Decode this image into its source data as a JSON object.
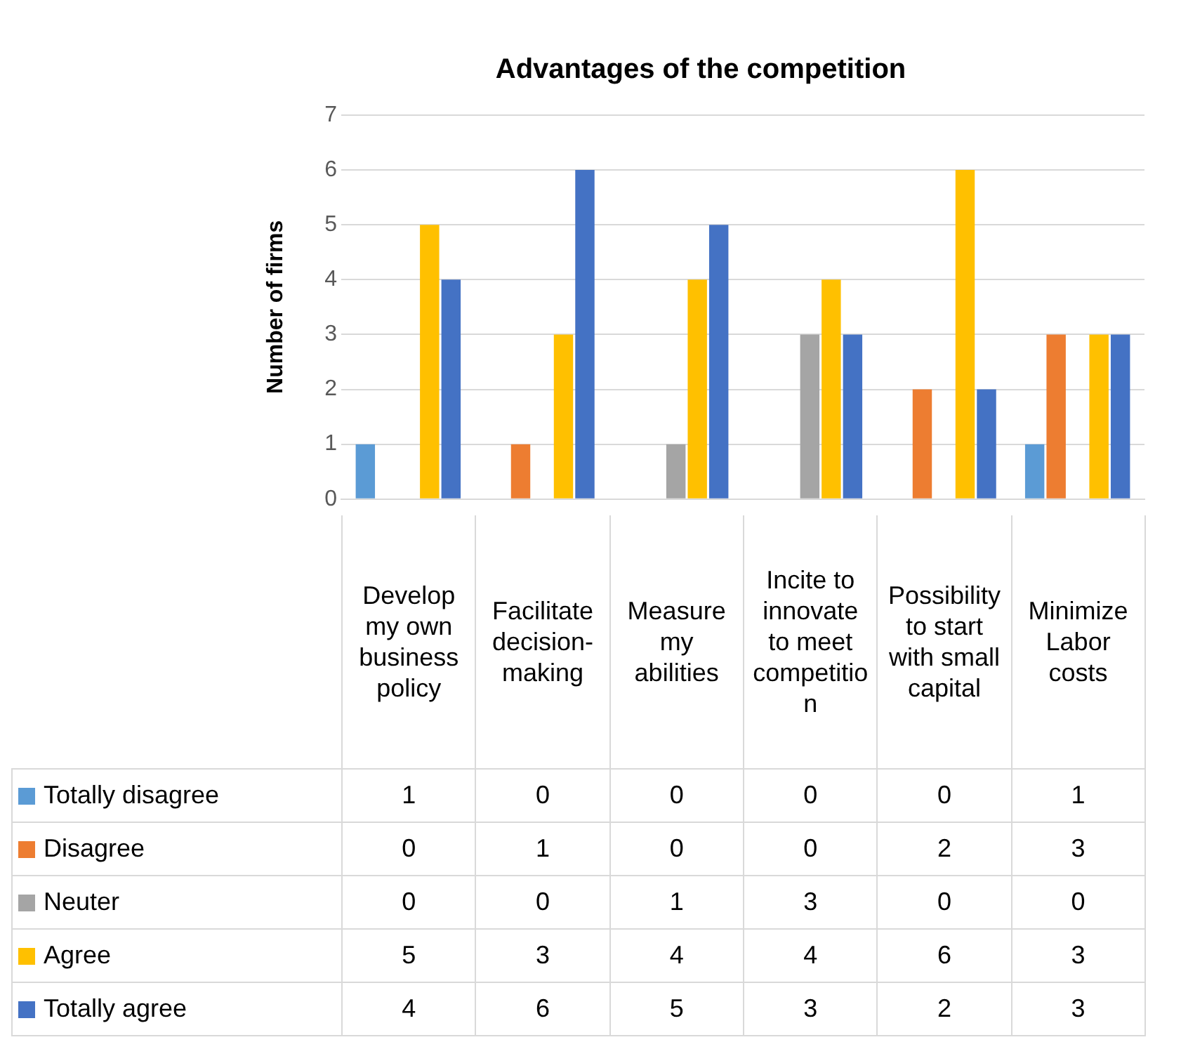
{
  "chart_data": {
    "type": "bar",
    "title": "Advantages of the competition",
    "ylabel": "Number of firms",
    "categories": [
      "Develop my own business policy",
      "Facilitate decision-making",
      "Measure my abilities",
      "Incite to innovate to meet competition",
      "Possibility to start with small capital",
      "Minimize Labor costs"
    ],
    "series": [
      {
        "name": "Totally disagree",
        "color": "#5b9bd5",
        "values": [
          1,
          0,
          0,
          0,
          0,
          1
        ]
      },
      {
        "name": "Disagree",
        "color": "#ed7d31",
        "values": [
          0,
          1,
          0,
          0,
          2,
          3
        ]
      },
      {
        "name": "Neuter",
        "color": "#a5a5a5",
        "values": [
          0,
          0,
          1,
          3,
          0,
          0
        ]
      },
      {
        "name": "Agree",
        "color": "#ffc000",
        "values": [
          5,
          3,
          4,
          4,
          6,
          3
        ]
      },
      {
        "name": "Totally agree",
        "color": "#4472c4",
        "values": [
          4,
          6,
          5,
          3,
          2,
          3
        ]
      }
    ],
    "ylim": [
      0,
      7
    ],
    "yticks": [
      0,
      1,
      2,
      3,
      4,
      5,
      6,
      7
    ],
    "grid": "y",
    "legend": "bottom",
    "data_labels": true
  }
}
